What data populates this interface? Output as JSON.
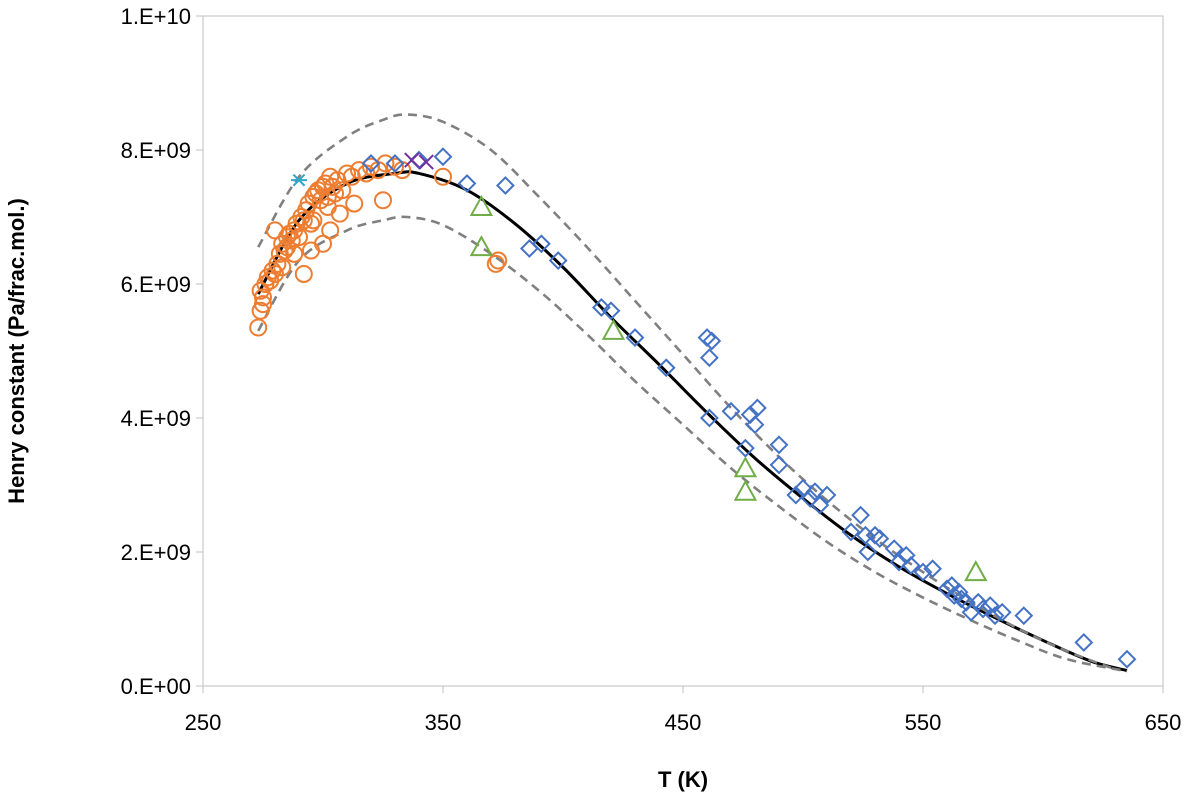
{
  "chart_data": {
    "type": "scatter",
    "title": "",
    "xlabel": "T (K)",
    "ylabel": "Henry constant (Pa/frac.mol.)",
    "xlim": [
      250,
      650
    ],
    "ylim": [
      0,
      10000000000
    ],
    "x_ticks": [
      250,
      350,
      450,
      550,
      650
    ],
    "x_tick_labels": [
      "250",
      "350",
      "450",
      "550",
      "650"
    ],
    "y_ticks": [
      0,
      2000000000,
      4000000000,
      6000000000,
      8000000000,
      10000000000
    ],
    "y_tick_labels": [
      "0.E+00",
      "2.E+09",
      "4.E+09",
      "6.E+09",
      "8.E+09",
      "1.E+10"
    ],
    "grid": false,
    "legend": "none",
    "lines": [
      {
        "style": "solid",
        "color": "#000000",
        "x": [
          273,
          290,
          310,
          330,
          340,
          360,
          380,
          400,
          420,
          440,
          460,
          480,
          500,
          520,
          540,
          560,
          580,
          600,
          620,
          635
        ],
        "y": [
          5850000000,
          6950000000,
          7500000000,
          7650000000,
          7650000000,
          7400000000,
          6900000000,
          6250000000,
          5500000000,
          4800000000,
          4080000000,
          3400000000,
          2800000000,
          2250000000,
          1780000000,
          1380000000,
          1020000000,
          680000000,
          370000000,
          230000000
        ]
      },
      {
        "style": "dashed",
        "color": "#808080",
        "x": [
          273,
          290,
          310,
          325,
          335,
          350,
          370,
          390,
          410,
          430,
          450,
          470,
          490,
          510,
          530,
          550,
          570,
          590,
          610,
          630
        ],
        "y": [
          6550000000,
          7600000000,
          8200000000,
          8450000000,
          8530000000,
          8420000000,
          8000000000,
          7300000000,
          6550000000,
          5750000000,
          4950000000,
          4150000000,
          3420000000,
          2770000000,
          2200000000,
          1700000000,
          1250000000,
          850000000,
          520000000,
          250000000
        ]
      },
      {
        "style": "dashed",
        "color": "#808080",
        "x": [
          273,
          290,
          310,
          325,
          335,
          350,
          370,
          390,
          410,
          430,
          450,
          470,
          490,
          510,
          530,
          550,
          570,
          590,
          610,
          635
        ],
        "y": [
          5300000000,
          6350000000,
          6800000000,
          6950000000,
          7000000000,
          6880000000,
          6450000000,
          5900000000,
          5250000000,
          4550000000,
          3900000000,
          3250000000,
          2680000000,
          2150000000,
          1700000000,
          1320000000,
          980000000,
          670000000,
          400000000,
          220000000
        ]
      }
    ],
    "series": [
      {
        "marker": "circle",
        "color": "#ED7D31",
        "x": [
          273,
          274,
          274,
          275,
          276,
          277,
          278,
          279,
          280,
          281,
          282,
          283,
          284,
          285,
          286,
          287,
          288,
          289,
          290,
          291,
          292,
          293,
          294,
          295,
          296,
          297,
          298,
          299,
          300,
          301,
          302,
          303,
          304,
          305,
          306,
          308,
          310,
          312,
          315,
          318,
          320,
          323,
          326,
          330,
          333,
          350,
          372,
          373,
          280,
          285,
          292,
          295,
          300,
          303,
          275,
          283,
          288,
          296,
          302,
          307,
          313,
          325
        ],
        "y": [
          5350000000,
          5600000000,
          5900000000,
          5800000000,
          6000000000,
          6100000000,
          6050000000,
          6200000000,
          6150000000,
          6300000000,
          6450000000,
          6600000000,
          6500000000,
          6700000000,
          6750000000,
          6650000000,
          6800000000,
          6900000000,
          6700000000,
          7000000000,
          6950000000,
          7100000000,
          7200000000,
          6900000000,
          7300000000,
          7350000000,
          7400000000,
          7250000000,
          7450000000,
          7500000000,
          7300000000,
          7600000000,
          7450000000,
          7350000000,
          7550000000,
          7400000000,
          7650000000,
          7600000000,
          7700000000,
          7650000000,
          7750000000,
          7700000000,
          7800000000,
          7750000000,
          7700000000,
          7600000000,
          6300000000,
          6350000000,
          6800000000,
          6550000000,
          6150000000,
          6500000000,
          6600000000,
          6800000000,
          5700000000,
          6250000000,
          6450000000,
          6950000000,
          7150000000,
          7050000000,
          7200000000,
          7250000000
        ]
      },
      {
        "marker": "diamond",
        "color": "#4472C4",
        "x": [
          320,
          330,
          340,
          350,
          360,
          376,
          386,
          391,
          398,
          416,
          420,
          430,
          443,
          460,
          461,
          462,
          461,
          470,
          476,
          478,
          480,
          481,
          490,
          490,
          497,
          500,
          503,
          505,
          507,
          510,
          520,
          524,
          526,
          527,
          530,
          532,
          538,
          540,
          543,
          545,
          550,
          554,
          560,
          562,
          563,
          565,
          566,
          568,
          570,
          573,
          575,
          578,
          580,
          583,
          592,
          617,
          635
        ],
        "y": [
          7800000000,
          7800000000,
          7850000000,
          7900000000,
          7500000000,
          7470000000,
          6530000000,
          6600000000,
          6350000000,
          5650000000,
          5600000000,
          5200000000,
          4750000000,
          5200000000,
          4900000000,
          5150000000,
          4000000000,
          4100000000,
          3550000000,
          4050000000,
          3900000000,
          4150000000,
          3600000000,
          3300000000,
          2850000000,
          2950000000,
          2800000000,
          2900000000,
          2700000000,
          2850000000,
          2300000000,
          2550000000,
          2250000000,
          2000000000,
          2250000000,
          2200000000,
          2050000000,
          1850000000,
          1950000000,
          1800000000,
          1700000000,
          1750000000,
          1450000000,
          1500000000,
          1350000000,
          1400000000,
          1300000000,
          1250000000,
          1100000000,
          1250000000,
          1150000000,
          1200000000,
          1050000000,
          1100000000,
          1050000000,
          650000000,
          400000000
        ]
      },
      {
        "marker": "triangle",
        "color": "#70AD47",
        "x": [
          366,
          366,
          421,
          476,
          476,
          572
        ],
        "y": [
          7150000000,
          6550000000,
          5300000000,
          3250000000,
          2900000000,
          1700000000
        ]
      },
      {
        "marker": "asterisk",
        "color": "#31A6C7",
        "x": [
          290
        ],
        "y": [
          7550000000
        ]
      },
      {
        "marker": "x",
        "color": "#7030A0",
        "x": [
          337,
          343
        ],
        "y": [
          7850000000,
          7820000000
        ]
      }
    ]
  }
}
